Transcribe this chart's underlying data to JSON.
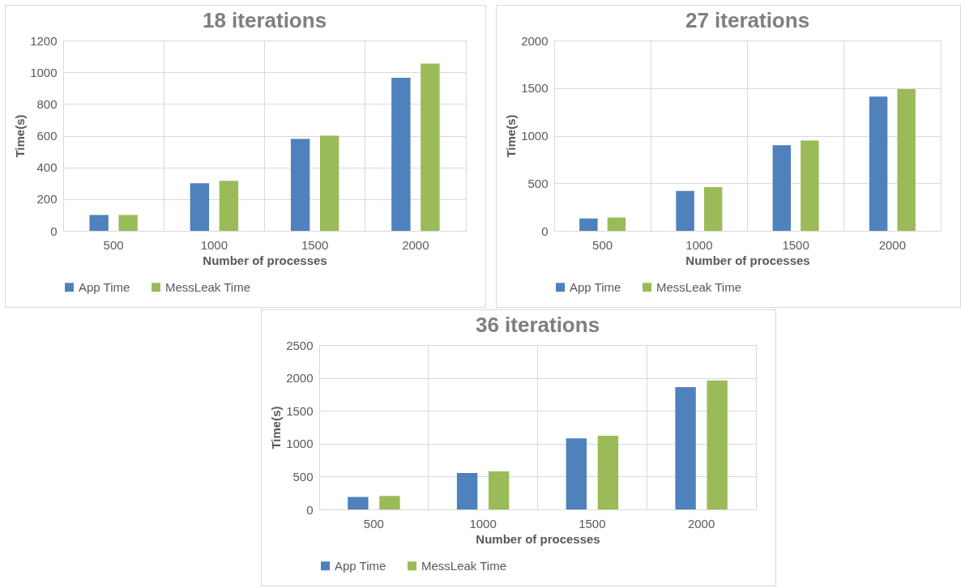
{
  "chart_data": [
    {
      "type": "bar",
      "title": "18 iterations",
      "xlabel": "Number of processes",
      "ylabel": "Time(s)",
      "categories": [
        "500",
        "1000",
        "1500",
        "2000"
      ],
      "ylim": [
        0,
        1200
      ],
      "yticks": [
        0,
        200,
        400,
        600,
        800,
        1000,
        1200
      ],
      "grid": true,
      "legend": "bottom",
      "series": [
        {
          "name": "App Time",
          "color": "#4f81bd",
          "values": [
            100,
            300,
            580,
            965
          ]
        },
        {
          "name": "MessLeak Time",
          "color": "#9bbb59",
          "values": [
            100,
            315,
            600,
            1055
          ]
        }
      ]
    },
    {
      "type": "bar",
      "title": "27 iterations",
      "xlabel": "Number of processes",
      "ylabel": "Time(s)",
      "categories": [
        "500",
        "1000",
        "1500",
        "2000"
      ],
      "ylim": [
        0,
        2000
      ],
      "yticks": [
        0,
        500,
        1000,
        1500,
        2000
      ],
      "grid": true,
      "legend": "bottom",
      "series": [
        {
          "name": "App Time",
          "color": "#4f81bd",
          "values": [
            130,
            420,
            900,
            1410
          ]
        },
        {
          "name": "MessLeak Time",
          "color": "#9bbb59",
          "values": [
            140,
            460,
            950,
            1490
          ]
        }
      ]
    },
    {
      "type": "bar",
      "title": "36 iterations",
      "xlabel": "Number of processes",
      "ylabel": "Time(s)",
      "categories": [
        "500",
        "1000",
        "1500",
        "2000"
      ],
      "ylim": [
        0,
        2500
      ],
      "yticks": [
        0,
        500,
        1000,
        1500,
        2000,
        2500
      ],
      "grid": true,
      "legend": "bottom",
      "series": [
        {
          "name": "App Time",
          "color": "#4f81bd",
          "values": [
            190,
            555,
            1080,
            1860
          ]
        },
        {
          "name": "MessLeak Time",
          "color": "#9bbb59",
          "values": [
            205,
            580,
            1120,
            1960
          ]
        }
      ]
    }
  ]
}
